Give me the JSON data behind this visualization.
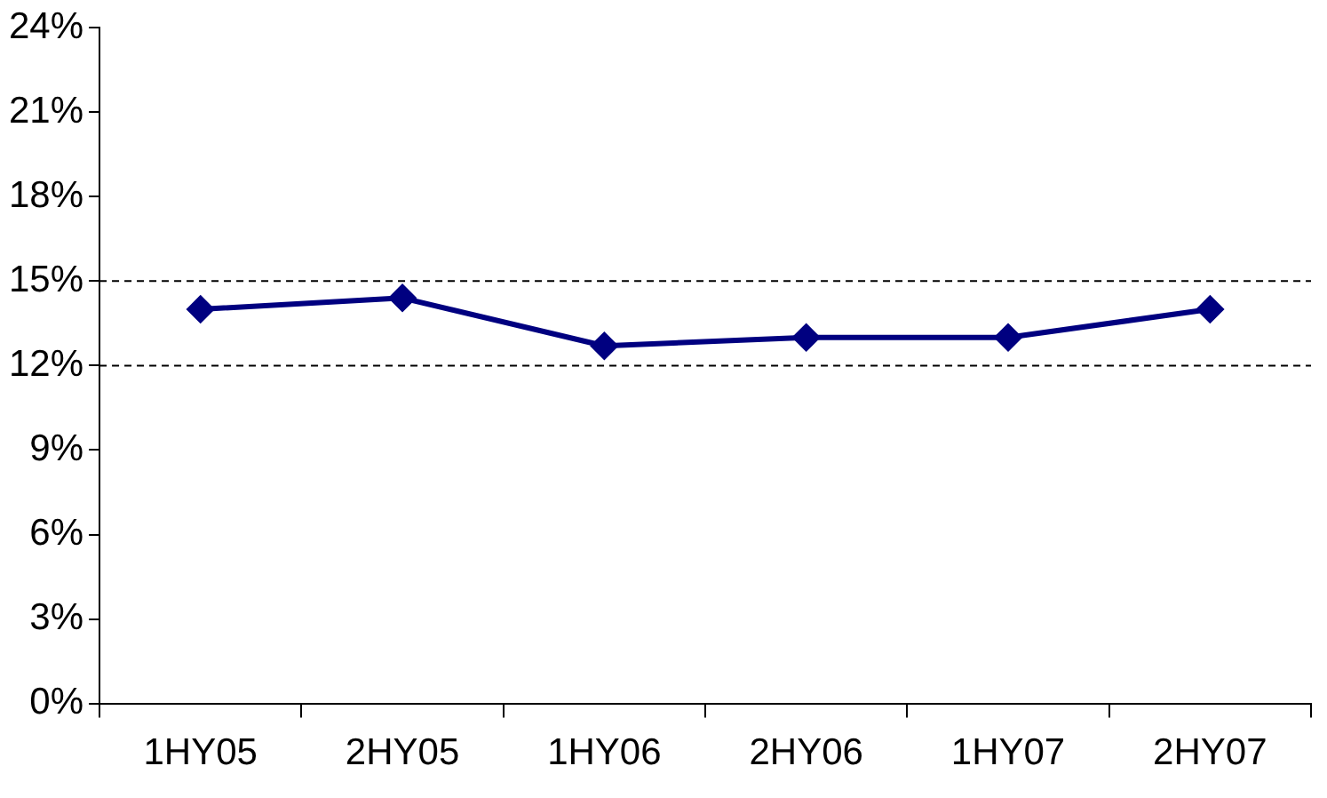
{
  "chart_data": {
    "type": "line",
    "categories": [
      "1HY05",
      "2HY05",
      "1HY06",
      "2HY06",
      "1HY07",
      "2HY07"
    ],
    "series": [
      {
        "color": "#000080",
        "values": [
          14.0,
          14.4,
          12.7,
          13.0,
          13.0,
          14.0
        ]
      }
    ],
    "ylim": [
      0,
      24
    ],
    "yticks": [
      {
        "value": 0,
        "label": "0%"
      },
      {
        "value": 3,
        "label": "3%"
      },
      {
        "value": 6,
        "label": "6%"
      },
      {
        "value": 9,
        "label": "9%"
      },
      {
        "value": 12,
        "label": "12%"
      },
      {
        "value": 15,
        "label": "15%"
      },
      {
        "value": 18,
        "label": "18%"
      },
      {
        "value": 21,
        "label": "21%"
      },
      {
        "value": 24,
        "label": "24%"
      }
    ],
    "ref_lines": [
      {
        "axis": "y",
        "value": 15,
        "color": "#000000",
        "line_style": "dashed"
      },
      {
        "axis": "y",
        "value": 12,
        "color": "#000000",
        "line_style": "dashed"
      }
    ],
    "grid": false,
    "legend": false,
    "marker": "diamond",
    "line_style": "solid"
  }
}
